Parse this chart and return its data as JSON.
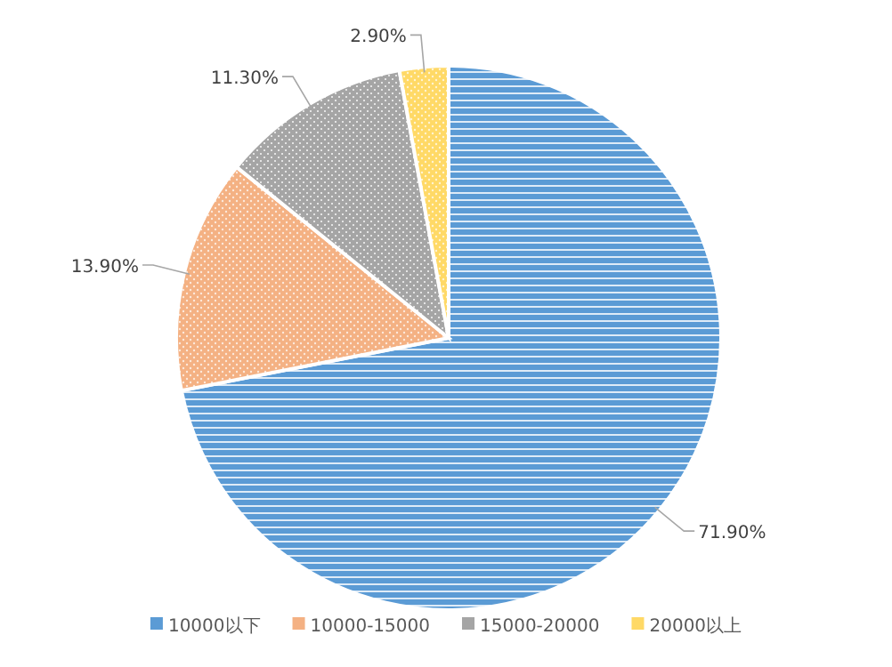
{
  "chart_data": {
    "type": "pie",
    "categories": [
      "10000以下",
      "10000-15000",
      "15000-20000",
      "20000以上"
    ],
    "values": [
      71.9,
      13.9,
      11.3,
      2.9
    ],
    "colors": [
      "#5b9bd5",
      "#f4b183",
      "#a5a5a5",
      "#ffd966"
    ],
    "value_labels": [
      "71.90%",
      "13.90%",
      "11.30%",
      "2.90%"
    ],
    "legend": "bottom"
  }
}
